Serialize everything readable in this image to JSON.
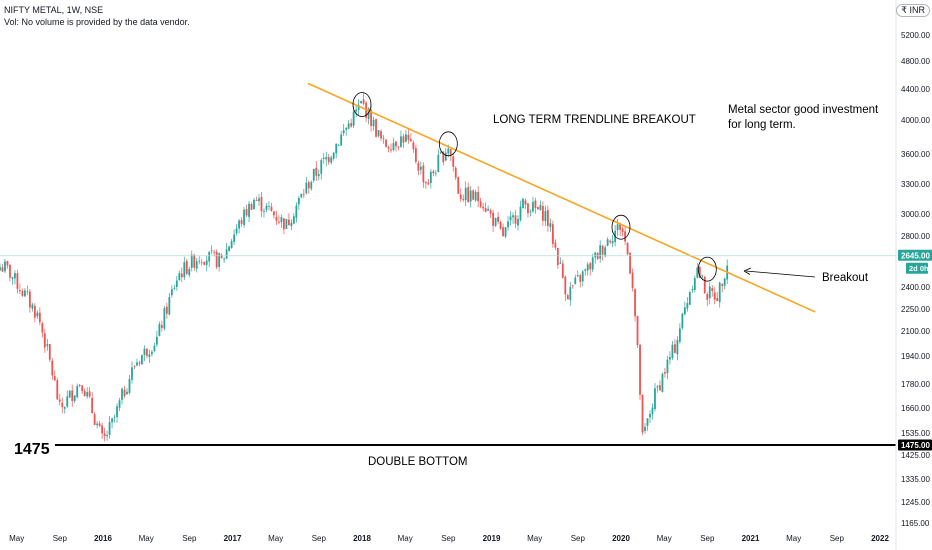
{
  "header": {
    "title": "NIFTY METAL, 1W, NSE",
    "volume_note": "Vol: No volume is provided by the data vendor.",
    "currency_badge": "₹ INR"
  },
  "colors": {
    "up": "#26a69a",
    "down": "#ef5350",
    "trendline": "#f5a623",
    "support": "#000000",
    "price_tag": "#26a69a",
    "axis_text": "#131722"
  },
  "chart_data": {
    "type": "candlestick",
    "ylim": [
      1100,
      5600
    ],
    "y_ticks": [
      5200,
      4800,
      4400,
      4000,
      3600,
      3300,
      3000,
      2800,
      2400,
      2250,
      2100,
      1940,
      1780,
      1660,
      1535,
      1425,
      1335,
      1245,
      1165
    ],
    "x_ticks": [
      "May",
      "Sep",
      "2016",
      "May",
      "Sep",
      "2017",
      "May",
      "Sep",
      "2018",
      "May",
      "Sep",
      "2019",
      "May",
      "Sep",
      "2020",
      "May",
      "Sep",
      "2021",
      "May",
      "Sep",
      "2022"
    ],
    "last_price": "2645.00",
    "countdown": "2d 0h",
    "support_level": "1475.00",
    "anchors": [
      {
        "date": "2015-04",
        "price": 2550
      },
      {
        "date": "2015-07",
        "price": 2200
      },
      {
        "date": "2015-09",
        "price": 1650
      },
      {
        "date": "2015-11",
        "price": 1800
      },
      {
        "date": "2016-01",
        "price": 1490
      },
      {
        "date": "2016-02",
        "price": 1600
      },
      {
        "date": "2016-04",
        "price": 1900
      },
      {
        "date": "2016-06",
        "price": 2050
      },
      {
        "date": "2016-08",
        "price": 2500
      },
      {
        "date": "2016-10",
        "price": 2650
      },
      {
        "date": "2016-12",
        "price": 2600
      },
      {
        "date": "2017-01",
        "price": 2800
      },
      {
        "date": "2017-03",
        "price": 3150
      },
      {
        "date": "2017-06",
        "price": 2900
      },
      {
        "date": "2017-08",
        "price": 3300
      },
      {
        "date": "2017-10",
        "price": 3600
      },
      {
        "date": "2017-12",
        "price": 4000
      },
      {
        "date": "2018-01",
        "price": 4220
      },
      {
        "date": "2018-03",
        "price": 3700
      },
      {
        "date": "2018-05",
        "price": 3800
      },
      {
        "date": "2018-07",
        "price": 3300
      },
      {
        "date": "2018-09",
        "price": 3700
      },
      {
        "date": "2018-10",
        "price": 3200
      },
      {
        "date": "2018-12",
        "price": 3150
      },
      {
        "date": "2019-02",
        "price": 2800
      },
      {
        "date": "2019-04",
        "price": 3100
      },
      {
        "date": "2019-06",
        "price": 3000
      },
      {
        "date": "2019-08",
        "price": 2350
      },
      {
        "date": "2019-10",
        "price": 2550
      },
      {
        "date": "2019-12",
        "price": 2800
      },
      {
        "date": "2020-01",
        "price": 2900
      },
      {
        "date": "2020-02",
        "price": 2500
      },
      {
        "date": "2020-03",
        "price": 1500
      },
      {
        "date": "2020-04",
        "price": 1700
      },
      {
        "date": "2020-06",
        "price": 2000
      },
      {
        "date": "2020-08",
        "price": 2550
      },
      {
        "date": "2020-09",
        "price": 2350
      },
      {
        "date": "2020-10",
        "price": 2350
      },
      {
        "date": "2020-11",
        "price": 2645
      }
    ],
    "trendline": {
      "start": {
        "date": "2017-08",
        "price": 4480
      },
      "end": {
        "date": "2021-07",
        "price": 2230
      }
    },
    "support": {
      "price": 1475,
      "label": "1475"
    },
    "touch_points": [
      {
        "date": "2018-01",
        "price": 4200
      },
      {
        "date": "2018-09",
        "price": 3720
      },
      {
        "date": "2020-01",
        "price": 2880
      },
      {
        "date": "2020-09",
        "price": 2540
      }
    ],
    "annotations": {
      "trendline_label": "LONG TERM TRENDLINE BREAKOUT",
      "note_line1": "Metal sector good investment",
      "note_line2": "for long term.",
      "breakout_label": "Breakout",
      "double_bottom_label": "DOUBLE BOTTOM"
    }
  }
}
